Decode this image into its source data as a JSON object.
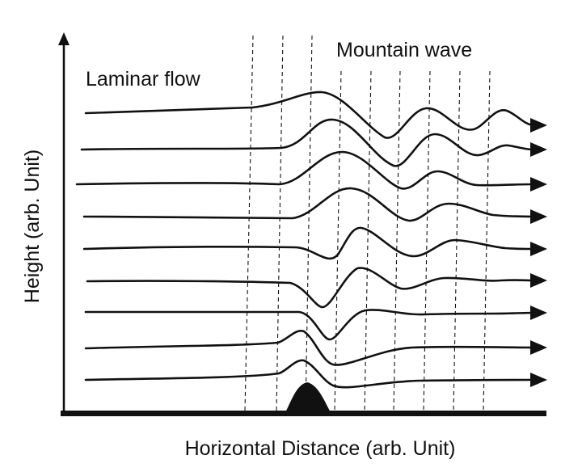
{
  "labels": {
    "laminar": "Laminar flow",
    "wave": "Mountain wave",
    "xaxis": "Horizontal Distance (arb. Unit)",
    "yaxis": "Height (arb. Unit)"
  },
  "style": {
    "ink": "#111111",
    "background": "#ffffff"
  },
  "icons": {
    "flow_arrowhead": "right-triangle-arrowhead",
    "axis_arrowhead": "up-arrowhead"
  }
}
